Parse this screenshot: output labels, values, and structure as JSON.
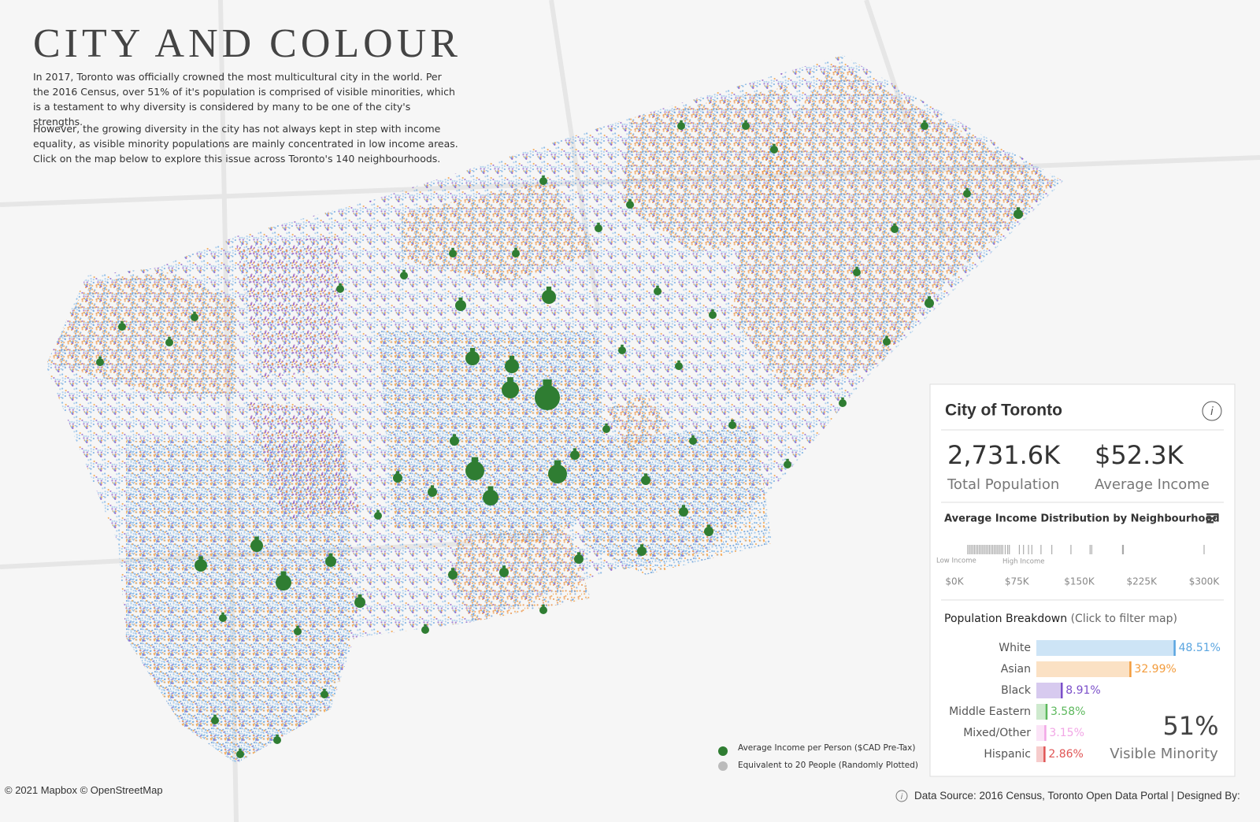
{
  "header": {
    "title": "CITY AND COLOUR",
    "paragraph_1": "In 2017, Toronto was officially crowned the most multicultural city in the world. Per the 2016 Census, over 51% of it's population is comprised of visible minorities, which is a testament to why diversity is considered by many to be one of the city's strengths.",
    "paragraph_2": "However, the growing diversity in the city has not always kept in step with income equality, as visible minority populations are mainly concentrated in low income areas. Click on the map below to explore this issue across Toronto's 140 neighbourhoods."
  },
  "panel": {
    "title": "City of Toronto",
    "info_icon": "i",
    "kpis": [
      {
        "value": "2,731.6K",
        "label": "Total Population"
      },
      {
        "value": "$52.3K",
        "label": "Average Income"
      }
    ],
    "visible_minority": {
      "value": "51%",
      "label": "Visible Minority"
    }
  },
  "income_distribution": {
    "title": "Average Income Distribution by Neighbourhood",
    "low_label": "Low Income",
    "high_label": "High Income",
    "values": [
      16,
      18,
      20,
      22,
      24,
      26,
      28,
      30,
      32,
      34,
      36,
      38,
      40,
      42,
      44,
      46,
      48,
      50,
      52,
      54,
      56,
      58,
      61,
      64,
      66,
      78,
      83,
      89,
      93,
      104,
      117,
      140,
      163,
      165,
      202,
      203,
      300
    ],
    "xlim": [
      0,
      300
    ],
    "xticks": [
      {
        "value": 0,
        "label": "$0K"
      },
      {
        "value": 75,
        "label": "$75K"
      },
      {
        "value": 150,
        "label": "$150K"
      },
      {
        "value": 225,
        "label": "$225K"
      },
      {
        "value": 300,
        "label": "$300K"
      }
    ]
  },
  "chart_data": {
    "type": "bar",
    "title": "Population Breakdown",
    "subtitle": "(Click to filter map)",
    "categories": [
      "White",
      "Asian",
      "Black",
      "Middle Eastern",
      "Mixed/Other",
      "Hispanic"
    ],
    "values": [
      48.51,
      32.99,
      8.91,
      3.58,
      3.15,
      2.86
    ],
    "value_labels": [
      "48.51%",
      "32.99%",
      "8.91%",
      "3.58%",
      "3.15%",
      "2.86%"
    ],
    "colors": [
      "#5aa5e0",
      "#f39c3c",
      "#7b4fc9",
      "#5cb85c",
      "#f2a6e6",
      "#e05555"
    ],
    "xlim": [
      0,
      50
    ]
  },
  "map_legend": {
    "income": "Average Income per Person ($CAD Pre-Tax)",
    "people": "Equivalent to 20 People (Randomly Plotted)"
  },
  "footer": {
    "attribution": "© 2021 Mapbox © OpenStreetMap",
    "info_icon": "i",
    "source": "Data Source: 2016 Census, Toronto Open Data Portal | Designed By: "
  }
}
